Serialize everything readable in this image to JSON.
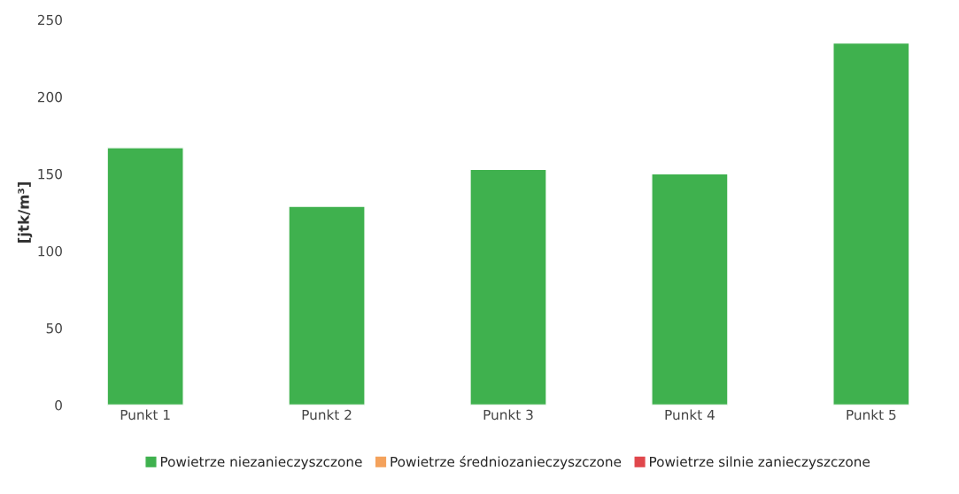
{
  "chart_data": {
    "type": "bar",
    "ylabel": "[jtk/m³]",
    "categories": [
      "Punkt 1",
      "Punkt 2",
      "Punkt 3",
      "Punkt 4",
      "Punkt 5"
    ],
    "ylim": [
      0,
      250
    ],
    "yticks": [
      0,
      50,
      100,
      150,
      200,
      250
    ],
    "grid": false,
    "legend": "bottom",
    "series": [
      {
        "name": "Powietrze niezanieczyszczone",
        "color": "#3fb14e",
        "values": [
          167,
          129,
          153,
          150,
          235
        ]
      },
      {
        "name": "Powietrze średniozanieczyszczone",
        "color": "#f4a25c",
        "values": [
          null,
          null,
          null,
          null,
          null
        ]
      },
      {
        "name": "Powietrze silnie zanieczyszczone",
        "color": "#e0474c",
        "values": [
          null,
          null,
          null,
          null,
          null
        ]
      }
    ]
  }
}
